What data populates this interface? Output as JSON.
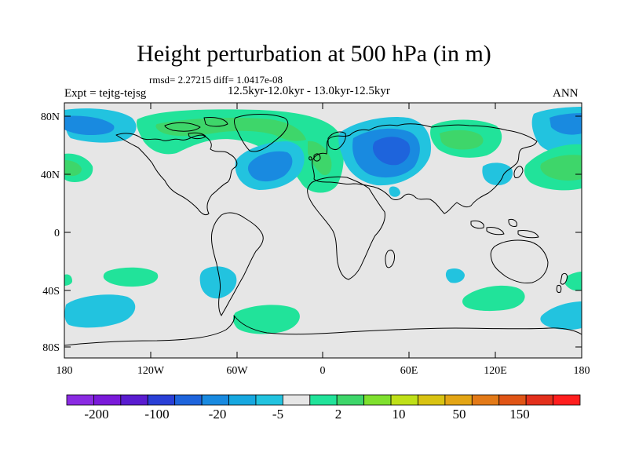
{
  "title": "Height perturbation at 500 hPa (in m)",
  "stats_line": "rmsd= 2.27215  diff= 1.0417e-08",
  "period_line": "12.5kyr-12.0kyr - 13.0kyr-12.5kyr",
  "experiment_label": "Expt = tejtg-tejsg",
  "season_label": "ANN",
  "y_ticks": [
    "80N",
    "40N",
    "0",
    "40S",
    "80S"
  ],
  "x_ticks": [
    "180",
    "120W",
    "60W",
    "0",
    "60E",
    "120E",
    "180"
  ],
  "colorbar": {
    "labels": [
      "-200",
      "-100",
      "-20",
      "-5",
      "2",
      "10",
      "50",
      "150"
    ],
    "colors": [
      "#8a2be2",
      "#7a1ad9",
      "#5a1cd0",
      "#2a3fd6",
      "#1e64dc",
      "#198ae0",
      "#17a8e0",
      "#22c3df",
      "#e6e6e6",
      "#21e39a",
      "#3ed66a",
      "#7fe02e",
      "#bfe018",
      "#d9c312",
      "#e3a515",
      "#e37a18",
      "#e05516",
      "#e3301c",
      "#ff1e1e"
    ]
  },
  "field_colors": {
    "blue_strong": "#1e64dc",
    "blue_mid": "#198ae0",
    "blue_light": "#22c3df",
    "neutral": "#e6e6e6",
    "green_light": "#21e39a",
    "green_strong": "#3ed66a"
  }
}
